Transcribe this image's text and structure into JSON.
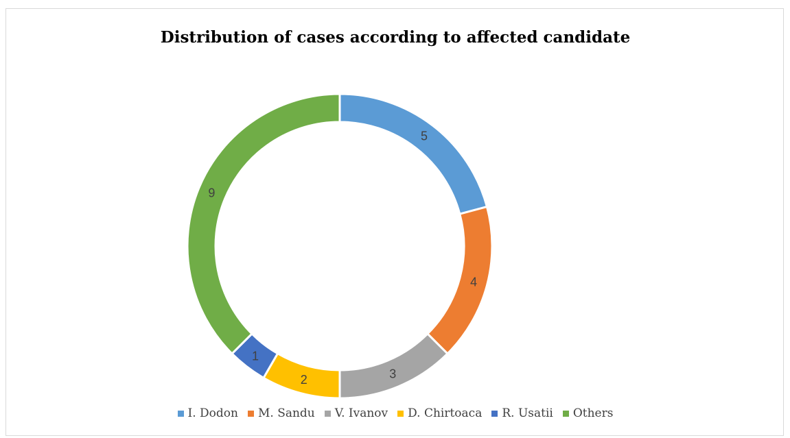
{
  "chart_data": {
    "type": "pie",
    "variant": "donut",
    "title": "Distribution of cases according to affected candidate",
    "categories": [
      "I. Dodon",
      "M. Sandu",
      "V. Ivanov",
      "D. Chirtoaca",
      "R. Usatii",
      "Others"
    ],
    "values": [
      5,
      4,
      3,
      2,
      1,
      9
    ],
    "data_labels": [
      "5",
      "4",
      "3",
      "2",
      "1",
      "9"
    ],
    "colors": [
      "#5B9BD5",
      "#ED7D31",
      "#A5A5A5",
      "#FFC000",
      "#4472C4",
      "#70AD47"
    ],
    "legend_position": "bottom",
    "grid": false
  }
}
